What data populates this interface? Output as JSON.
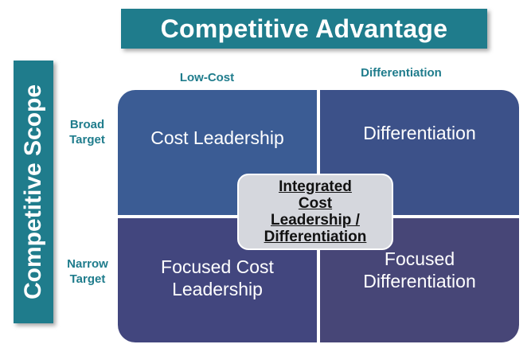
{
  "title": "Competitive Advantage",
  "side_title": "Competitive Scope",
  "columns": [
    "Low-Cost",
    "Differentiation"
  ],
  "rows": [
    [
      "Broad",
      "Target"
    ],
    [
      "Narrow",
      "Target"
    ]
  ],
  "quadrants": {
    "top_left": "Cost Leadership",
    "top_right": "Differentiation",
    "bottom_left": [
      "Focused Cost",
      "Leadership"
    ],
    "bottom_right": [
      "Focused",
      "Differentiation"
    ]
  },
  "center": [
    "Integrated",
    "Cost",
    "Leadership /",
    "Differentiation"
  ],
  "colors": {
    "banner": "#1f7c8c",
    "top_left": "#3b5c94",
    "top_right": "#3c5189",
    "bottom_left": "#42467e",
    "bottom_right": "#474677",
    "center": "#d5d7dd"
  }
}
